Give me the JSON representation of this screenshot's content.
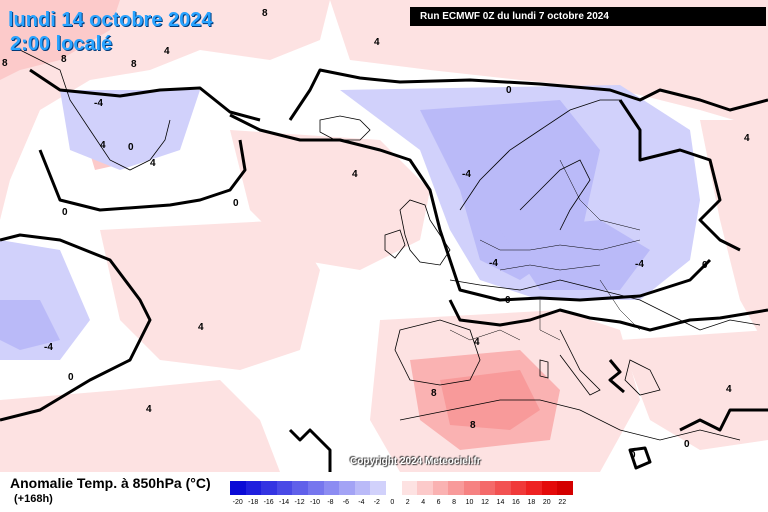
{
  "header": {
    "date": "lundi 14 octobre 2024",
    "time": "2:00 localé",
    "run": "Run ECMWF 0Z du lundi 7 octobre 2024"
  },
  "copyright": "Copyright 2024 Meteociel.fr",
  "variable": {
    "title": "Anomalie Temp. à 850hPa (°C)",
    "step": "(+168h)"
  },
  "legend": {
    "ticks": [
      "-20",
      "-18",
      "-16",
      "-14",
      "-12",
      "-10",
      "-8",
      "-6",
      "-4",
      "-2",
      "0",
      "2",
      "4",
      "6",
      "8",
      "10",
      "12",
      "14",
      "16",
      "18",
      "20",
      "22"
    ],
    "colors": [
      "#0a0ad6",
      "#1f1fde",
      "#3434e2",
      "#4a4ae6",
      "#6060ea",
      "#7676ee",
      "#8c8cf2",
      "#a3a3f5",
      "#babaf8",
      "#d1d1fb",
      "#ffffff",
      "#fde2e2",
      "#fccaca",
      "#fab2b2",
      "#f89a9a",
      "#f68282",
      "#f46a6a",
      "#f25252",
      "#f03a3a",
      "#ee2222",
      "#e40a0a",
      "#d40000"
    ]
  },
  "contour_labels": [
    "0",
    "4",
    "-4",
    "8",
    "0",
    "4",
    "0",
    "4",
    "-4",
    "4",
    "4",
    "0",
    "-4",
    "0",
    "4",
    "-4",
    "8",
    "8",
    "4",
    "0",
    "0",
    "4",
    "4",
    "-4",
    "0",
    "0",
    "8",
    "4",
    "8",
    "8"
  ]
}
